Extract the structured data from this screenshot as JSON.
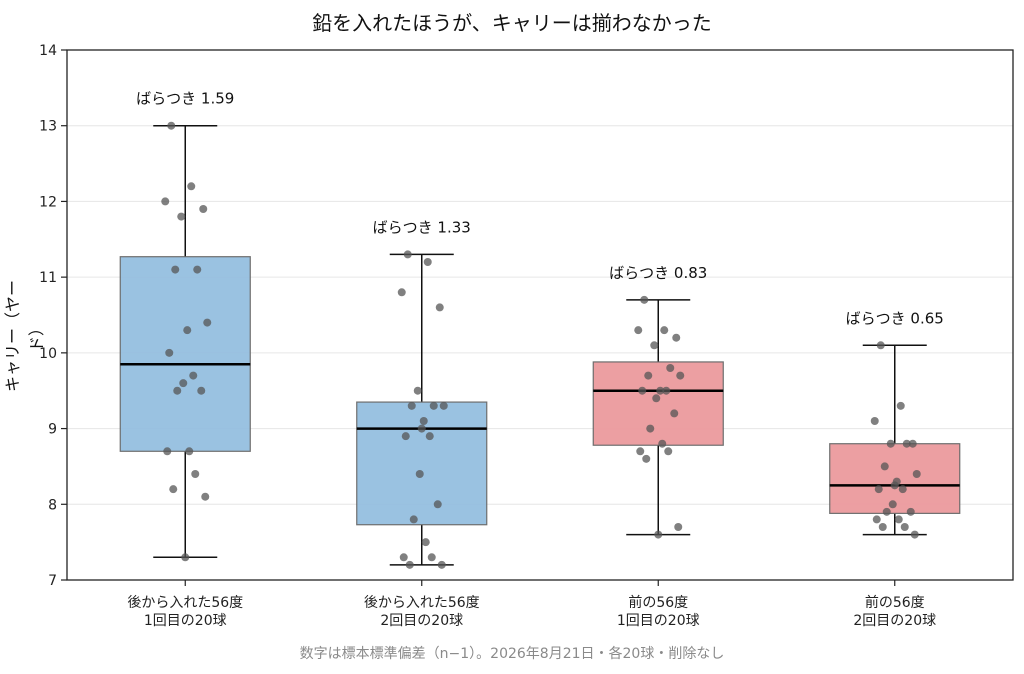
{
  "chart_data": {
    "type": "box",
    "title": "鉛を入れたほうが、キャリーは揃わなかった",
    "ylabel": "キャリー（ヤード）",
    "xlabel": "",
    "ylim": [
      7,
      14
    ],
    "yticks": [
      7,
      8,
      9,
      10,
      11,
      12,
      13,
      14
    ],
    "grid": "horizontal",
    "caption": "数字は標本標準偏差（n−1）。2026年8月21日・各20球・削除なし",
    "groups": [
      {
        "label_line1": "後から入れた56度",
        "label_line2": "1回目の20球",
        "color": "#95bfe0",
        "stats": {
          "whisker_low": 7.3,
          "q1": 8.7,
          "median": 9.85,
          "q3": 11.27,
          "whisker_high": 13.0
        },
        "annotation": "ばらつき 1.59",
        "points": [
          13.0,
          12.2,
          12.0,
          11.9,
          11.8,
          11.1,
          11.1,
          10.4,
          10.3,
          10.0,
          9.7,
          9.6,
          9.5,
          9.5,
          8.7,
          8.7,
          8.4,
          8.2,
          8.1,
          7.3
        ]
      },
      {
        "label_line1": "後から入れた56度",
        "label_line2": "2回目の20球",
        "color": "#95bfe0",
        "stats": {
          "whisker_low": 7.2,
          "q1": 7.73,
          "median": 9.0,
          "q3": 9.35,
          "whisker_high": 11.3
        },
        "annotation": "ばらつき 1.33",
        "points": [
          11.3,
          11.2,
          10.8,
          10.6,
          9.5,
          9.3,
          9.3,
          9.3,
          9.1,
          8.9,
          8.9,
          8.4,
          8.0,
          7.8,
          7.5,
          7.3,
          7.3,
          7.2,
          7.2,
          9.0
        ]
      },
      {
        "label_line1": "前の56度",
        "label_line2": "1回目の20球",
        "color": "#ec9a9e",
        "stats": {
          "whisker_low": 7.6,
          "q1": 8.78,
          "median": 9.5,
          "q3": 9.88,
          "whisker_high": 10.7
        },
        "annotation": "ばらつき 0.83",
        "points": [
          10.7,
          10.3,
          10.3,
          10.2,
          10.1,
          9.8,
          9.7,
          9.7,
          9.5,
          9.5,
          9.5,
          9.4,
          9.2,
          9.0,
          8.8,
          8.7,
          8.7,
          8.6,
          7.7,
          7.6
        ]
      },
      {
        "label_line1": "前の56度",
        "label_line2": "2回目の20球",
        "color": "#ec9a9e",
        "stats": {
          "whisker_low": 7.6,
          "q1": 7.88,
          "median": 8.25,
          "q3": 8.8,
          "whisker_high": 10.1
        },
        "annotation": "ばらつき 0.65",
        "points": [
          10.1,
          9.3,
          9.1,
          8.8,
          8.8,
          8.8,
          8.5,
          8.4,
          8.3,
          8.2,
          8.2,
          8.0,
          7.9,
          7.9,
          7.8,
          7.8,
          7.7,
          7.7,
          7.6,
          8.25
        ]
      }
    ]
  }
}
